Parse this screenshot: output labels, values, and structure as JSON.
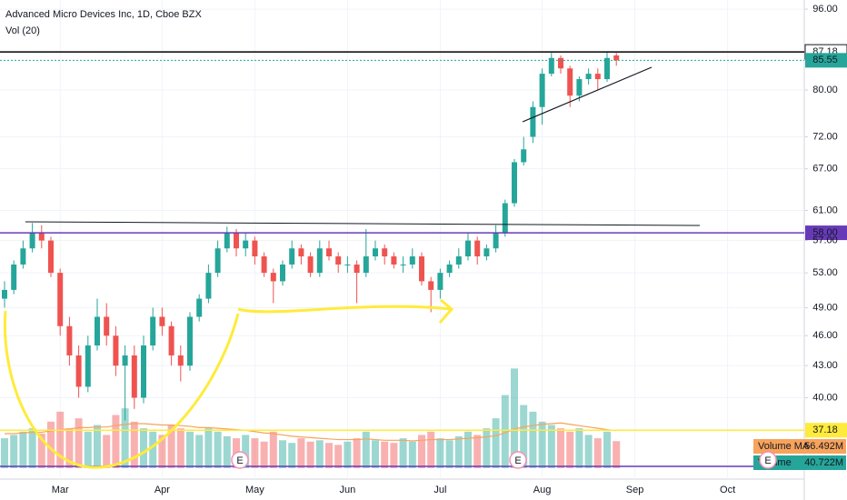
{
  "chart_data": {
    "type": "candlestick",
    "title": "Advanced Micro Devices Inc, 1D, Cboe BZX",
    "subtitle": "Vol (20)",
    "categories": [
      null,
      null,
      null,
      null,
      null,
      null,
      "Mar",
      null,
      null,
      null,
      null,
      null,
      null,
      null,
      null,
      null,
      null,
      "Apr",
      null,
      null,
      null,
      null,
      null,
      null,
      null,
      null,
      null,
      "May",
      null,
      null,
      null,
      null,
      null,
      null,
      null,
      null,
      null,
      "Jun",
      null,
      null,
      null,
      null,
      null,
      null,
      null,
      null,
      null,
      "Jul",
      null,
      null,
      null,
      null,
      null,
      null,
      null,
      null,
      null,
      null,
      "Aug",
      null,
      null,
      null,
      null,
      null,
      null,
      null,
      null,
      null,
      "Sep",
      null,
      null,
      null,
      null,
      null,
      null,
      null,
      null,
      null,
      "Oct"
    ],
    "open": [
      50,
      51,
      54,
      56,
      58,
      57,
      53,
      47,
      44,
      41,
      45,
      48,
      46,
      43,
      44,
      40,
      45,
      48,
      47,
      44,
      43,
      48,
      50,
      53,
      56,
      58,
      56,
      57,
      55,
      53,
      52,
      54,
      56,
      55,
      53,
      56,
      55,
      54,
      54,
      53,
      55,
      56,
      55,
      54,
      54,
      55,
      52,
      51,
      53,
      54,
      55,
      57,
      55,
      56,
      58,
      62,
      68,
      72,
      77,
      83,
      86,
      84,
      79,
      82,
      83,
      82,
      86.5,
      null,
      null,
      null,
      null,
      null,
      null,
      null,
      null,
      null,
      null,
      null,
      null
    ],
    "high": [
      52,
      54.5,
      57,
      59.3,
      59,
      57.5,
      53.5,
      48,
      45,
      46,
      50,
      49.5,
      47,
      45,
      45,
      46,
      49,
      49,
      47.5,
      45,
      48.5,
      50.5,
      54,
      57,
      58.8,
      58.5,
      58,
      57.5,
      55.5,
      53.5,
      54.5,
      57,
      56.5,
      55.5,
      57,
      57,
      55.5,
      55,
      54.5,
      58.5,
      57,
      56.5,
      55.5,
      55,
      56,
      55.5,
      52.5,
      53.5,
      54.5,
      56,
      58,
      57.5,
      56.5,
      59,
      62.5,
      68.5,
      72,
      78,
      84,
      87,
      86.5,
      84.5,
      82.5,
      84,
      84,
      87.2,
      87,
      null,
      null,
      null,
      null,
      null,
      null,
      null,
      null,
      null,
      null,
      null,
      null
    ],
    "low": [
      49,
      50.5,
      53.5,
      55.5,
      56,
      52.5,
      46,
      43,
      40,
      40.5,
      44.5,
      45,
      42,
      38,
      39,
      39.5,
      44.5,
      46,
      43,
      41.5,
      42.5,
      47.5,
      49.5,
      52.5,
      55.5,
      55,
      55,
      54,
      52.5,
      49.5,
      51.5,
      53.5,
      54,
      52.5,
      52.5,
      54.5,
      53,
      53,
      49.5,
      52.5,
      54.5,
      54,
      53.5,
      53,
      53.5,
      51.5,
      48.5,
      50,
      52.5,
      53.5,
      54.5,
      54,
      54.5,
      55.5,
      57.5,
      61.5,
      67.5,
      71,
      74,
      82.5,
      83,
      77,
      78,
      81,
      80,
      81.5,
      84.5,
      null,
      null,
      null,
      null,
      null,
      null,
      null,
      null,
      null,
      null,
      null,
      null
    ],
    "close": [
      51,
      54,
      56,
      58,
      57,
      53,
      47,
      44,
      41,
      45,
      48,
      46,
      43,
      44,
      40,
      45,
      48,
      47,
      44,
      43,
      48,
      50,
      53,
      56,
      58,
      56,
      57,
      55,
      53,
      52,
      54,
      56,
      55,
      53,
      56,
      55,
      54,
      54,
      53,
      55,
      56,
      55,
      54,
      54,
      55,
      52,
      51,
      53,
      54,
      55,
      57,
      55,
      56,
      58,
      62,
      68,
      70,
      77,
      83,
      86,
      84,
      79,
      82,
      83,
      82,
      86,
      85.55,
      null,
      null,
      null,
      null,
      null,
      null,
      null,
      null,
      null,
      null,
      null,
      null
    ],
    "volume": [
      45,
      50,
      55,
      60,
      52,
      70,
      85,
      60,
      75,
      55,
      65,
      50,
      80,
      90,
      70,
      60,
      55,
      50,
      65,
      60,
      55,
      50,
      60,
      55,
      48,
      45,
      50,
      45,
      40,
      55,
      42,
      38,
      45,
      40,
      42,
      38,
      35,
      40,
      45,
      55,
      42,
      40,
      38,
      45,
      40,
      50,
      55,
      45,
      42,
      48,
      55,
      50,
      60,
      75,
      110,
      150,
      95,
      85,
      70,
      65,
      60,
      55,
      60,
      50,
      45,
      55,
      40.722,
      null,
      null,
      null,
      null,
      null,
      null,
      null,
      null,
      null,
      null,
      null,
      null
    ],
    "volume_ma": [
      52,
      52,
      53,
      54,
      54,
      56,
      58,
      59,
      61,
      61,
      62,
      62,
      64,
      66,
      67,
      67,
      66,
      65,
      65,
      64,
      63,
      61,
      61,
      60,
      59,
      58,
      57,
      55,
      53,
      52,
      50,
      48,
      47,
      46,
      45,
      44,
      43,
      43,
      43,
      44,
      43,
      42,
      42,
      42,
      41,
      42,
      43,
      43,
      43,
      44,
      45,
      46,
      47,
      49,
      53,
      59,
      62,
      64,
      66,
      67,
      68,
      66,
      64,
      62,
      60,
      58,
      56.492,
      null,
      null,
      null,
      null,
      null,
      null,
      null,
      null,
      null,
      null,
      null,
      null
    ],
    "up_color": "#26a69a",
    "down_color": "#ef5350",
    "ma_color": "#f7a35c",
    "ylim": [
      33.3,
      98
    ],
    "log": true,
    "vlim": [
      0,
      160
    ],
    "grid": true,
    "yticks": [
      {
        "value": 96,
        "label": "96.00"
      },
      {
        "value": 80,
        "label": "80.00"
      },
      {
        "value": 72,
        "label": "72.00"
      },
      {
        "value": 67,
        "label": "67.00"
      },
      {
        "value": 61,
        "label": "61.00"
      },
      {
        "value": 57,
        "label": "57.00"
      },
      {
        "value": 53,
        "label": "53.00"
      },
      {
        "value": 49,
        "label": "49.00"
      },
      {
        "value": 46,
        "label": "46.00"
      },
      {
        "value": 43,
        "label": "43.00"
      },
      {
        "value": 40,
        "label": "40.00"
      }
    ],
    "price_lines": [
      {
        "value": 87.18,
        "label": "87.18",
        "color": "#000000"
      },
      {
        "value": 85.55,
        "label": "85.55",
        "color": "#26a69a"
      },
      {
        "value": 58,
        "label": "58.00",
        "color": "#673ab7"
      },
      {
        "value": 37.18,
        "label": "37.18",
        "color": "#ffeb3b"
      }
    ],
    "volume_badges": [
      {
        "name": "Volume MA",
        "value": 56.492,
        "label": "56.492M",
        "color": "#f7a35c"
      },
      {
        "name": "Volume",
        "value": 40.722,
        "label": "40.722M",
        "color": "#26a69a"
      }
    ],
    "events": [
      "E",
      "E",
      "E"
    ]
  }
}
